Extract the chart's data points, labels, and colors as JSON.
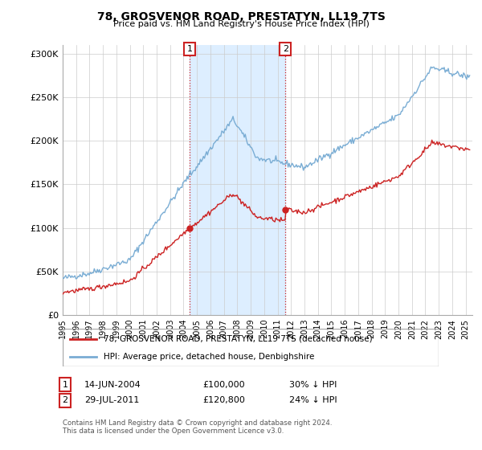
{
  "title": "78, GROSVENOR ROAD, PRESTATYN, LL19 7TS",
  "subtitle": "Price paid vs. HM Land Registry's House Price Index (HPI)",
  "hpi_color": "#7aadd4",
  "price_color": "#cc2222",
  "shade_color": "#ddeeff",
  "ylim": [
    0,
    310000
  ],
  "yticks": [
    0,
    50000,
    100000,
    150000,
    200000,
    250000,
    300000
  ],
  "ytick_labels": [
    "£0",
    "£50K",
    "£100K",
    "£150K",
    "£200K",
    "£250K",
    "£300K"
  ],
  "transaction1_date": "14-JUN-2004",
  "transaction1_price": "£100,000",
  "transaction1_pct": "30% ↓ HPI",
  "transaction1_x": 2004.45,
  "transaction1_y": 100000,
  "transaction2_date": "29-JUL-2011",
  "transaction2_price": "£120,800",
  "transaction2_pct": "24% ↓ HPI",
  "transaction2_x": 2011.58,
  "transaction2_y": 120800,
  "shade1_start": 2004.45,
  "shade1_end": 2011.58,
  "legend_line1": "78, GROSVENOR ROAD, PRESTATYN, LL19 7TS (detached house)",
  "legend_line2": "HPI: Average price, detached house, Denbighshire",
  "footer": "Contains HM Land Registry data © Crown copyright and database right 2024.\nThis data is licensed under the Open Government Licence v3.0.",
  "xmin": 1995,
  "xmax": 2025.5
}
